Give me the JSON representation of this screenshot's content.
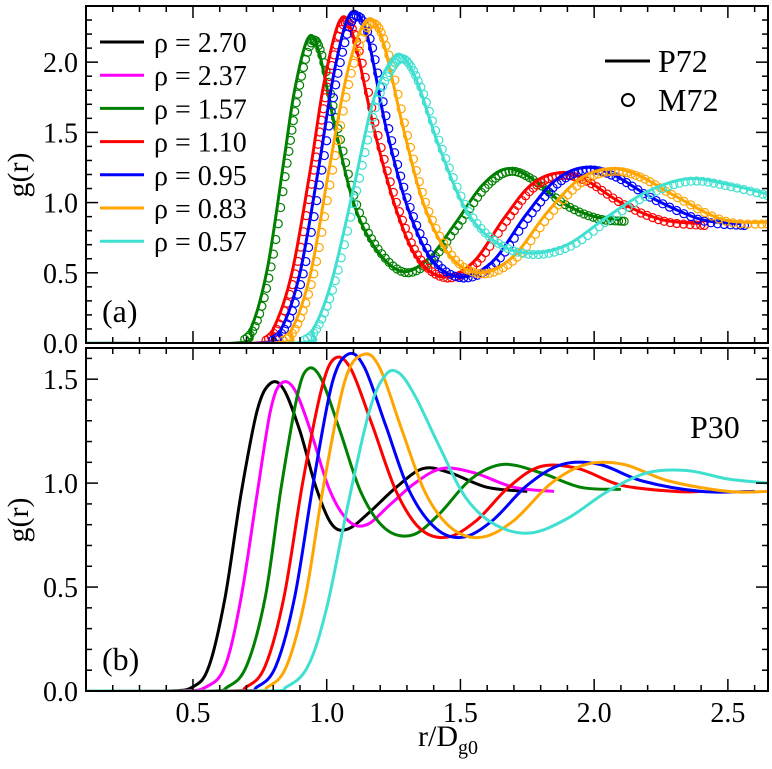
{
  "chart_data": [
    {
      "type": "line",
      "panel_label": "(a)",
      "ylabel": "g(r)",
      "xlabel": "",
      "xlim": [
        0.1,
        2.65
      ],
      "ylim": [
        0,
        2.4
      ],
      "xticks": [
        0.5,
        1.0,
        1.5,
        2.0,
        2.5
      ],
      "yticks": [
        0.0,
        0.5,
        1.0,
        1.5,
        2.0
      ],
      "ytick_labels": [
        "0.0",
        "0.5",
        "1.0",
        "1.5",
        "2.0"
      ],
      "legend": {
        "rho_prefix": "ρ = ",
        "style_entries": [
          {
            "label": "P72",
            "style": "line"
          },
          {
            "label": "M72",
            "style": "markers"
          }
        ]
      },
      "series": [
        {
          "name": "ρ = 2.70",
          "rho": "2.70",
          "color": "#000000",
          "shown": false
        },
        {
          "name": "ρ = 2.37",
          "rho": "2.37",
          "color": "#ff00ff",
          "shown": false
        },
        {
          "name": "ρ = 1.57",
          "rho": "1.57",
          "color": "#008000",
          "shown": true,
          "x0": 0.66,
          "points": [
            [
              0.66,
              0
            ],
            [
              0.72,
              0.12
            ],
            [
              0.78,
              0.55
            ],
            [
              0.84,
              1.3
            ],
            [
              0.88,
              1.8
            ],
            [
              0.93,
              2.17
            ],
            [
              0.97,
              2.08
            ],
            [
              1.03,
              1.55
            ],
            [
              1.1,
              1.0
            ],
            [
              1.18,
              0.68
            ],
            [
              1.28,
              0.51
            ],
            [
              1.38,
              0.6
            ],
            [
              1.48,
              0.85
            ],
            [
              1.58,
              1.12
            ],
            [
              1.67,
              1.24
            ],
            [
              1.76,
              1.18
            ],
            [
              1.88,
              1.0
            ],
            [
              2.0,
              0.9
            ],
            [
              2.1,
              0.88
            ]
          ]
        },
        {
          "name": "ρ = 1.10",
          "rho": "1.10",
          "color": "#ff0000",
          "shown": true,
          "x0": 0.74,
          "points": [
            [
              0.74,
              0
            ],
            [
              0.8,
              0.1
            ],
            [
              0.87,
              0.5
            ],
            [
              0.94,
              1.25
            ],
            [
              0.99,
              1.85
            ],
            [
              1.05,
              2.3
            ],
            [
              1.1,
              2.18
            ],
            [
              1.18,
              1.5
            ],
            [
              1.26,
              0.95
            ],
            [
              1.34,
              0.6
            ],
            [
              1.44,
              0.47
            ],
            [
              1.55,
              0.58
            ],
            [
              1.66,
              0.88
            ],
            [
              1.76,
              1.12
            ],
            [
              1.86,
              1.21
            ],
            [
              1.96,
              1.17
            ],
            [
              2.1,
              1.0
            ],
            [
              2.25,
              0.88
            ],
            [
              2.4,
              0.85
            ]
          ]
        },
        {
          "name": "ρ = 0.95",
          "rho": "0.95",
          "color": "#0000ff",
          "shown": true,
          "x0": 0.76,
          "points": [
            [
              0.76,
              0
            ],
            [
              0.83,
              0.1
            ],
            [
              0.9,
              0.5
            ],
            [
              0.97,
              1.25
            ],
            [
              1.03,
              1.95
            ],
            [
              1.09,
              2.35
            ],
            [
              1.15,
              2.2
            ],
            [
              1.22,
              1.55
            ],
            [
              1.3,
              0.98
            ],
            [
              1.39,
              0.6
            ],
            [
              1.5,
              0.47
            ],
            [
              1.62,
              0.58
            ],
            [
              1.74,
              0.9
            ],
            [
              1.85,
              1.15
            ],
            [
              1.96,
              1.25
            ],
            [
              2.07,
              1.2
            ],
            [
              2.22,
              1.03
            ],
            [
              2.4,
              0.88
            ],
            [
              2.55,
              0.85
            ]
          ]
        },
        {
          "name": "ρ = 0.83",
          "rho": "0.83",
          "color": "#ffa500",
          "shown": true,
          "x0": 0.8,
          "points": [
            [
              0.8,
              0
            ],
            [
              0.87,
              0.1
            ],
            [
              0.94,
              0.5
            ],
            [
              1.01,
              1.25
            ],
            [
              1.08,
              1.95
            ],
            [
              1.15,
              2.3
            ],
            [
              1.21,
              2.15
            ],
            [
              1.29,
              1.5
            ],
            [
              1.37,
              0.95
            ],
            [
              1.47,
              0.6
            ],
            [
              1.58,
              0.5
            ],
            [
              1.7,
              0.62
            ],
            [
              1.82,
              0.92
            ],
            [
              1.94,
              1.16
            ],
            [
              2.05,
              1.24
            ],
            [
              2.16,
              1.2
            ],
            [
              2.3,
              1.05
            ],
            [
              2.48,
              0.88
            ],
            [
              2.65,
              0.86
            ]
          ]
        },
        {
          "name": "ρ = 0.57",
          "rho": "0.57",
          "color": "#40e0d0",
          "shown": true,
          "x0": 0.88,
          "points": [
            [
              0.88,
              0
            ],
            [
              0.95,
              0.1
            ],
            [
              1.02,
              0.45
            ],
            [
              1.1,
              1.1
            ],
            [
              1.17,
              1.7
            ],
            [
              1.23,
              1.98
            ],
            [
              1.28,
              2.05
            ],
            [
              1.34,
              1.85
            ],
            [
              1.42,
              1.4
            ],
            [
              1.52,
              0.95
            ],
            [
              1.63,
              0.72
            ],
            [
              1.76,
              0.64
            ],
            [
              1.9,
              0.7
            ],
            [
              2.05,
              0.9
            ],
            [
              2.2,
              1.08
            ],
            [
              2.35,
              1.17
            ],
            [
              2.5,
              1.13
            ],
            [
              2.65,
              1.06
            ]
          ]
        }
      ]
    },
    {
      "type": "line",
      "panel_label": "(b)",
      "annotation": "P30",
      "ylabel": "g(r)",
      "xlabel": "r/D",
      "xlabel_sub": "g0",
      "xlim": [
        0.1,
        2.65
      ],
      "ylim": [
        0,
        1.65
      ],
      "xticks": [
        0.5,
        1.0,
        1.5,
        2.0,
        2.5
      ],
      "xtick_labels": [
        "0.5",
        "1.0",
        "1.5",
        "2.0",
        "2.5"
      ],
      "yticks": [
        0.0,
        0.5,
        1.0,
        1.5
      ],
      "ytick_labels": [
        "0.0",
        "0.5",
        "1.0",
        "1.5"
      ],
      "series": [
        {
          "name": "ρ = 2.70",
          "color": "#000000",
          "points": [
            [
              0.1,
              0
            ],
            [
              0.4,
              0
            ],
            [
              0.5,
              0.02
            ],
            [
              0.56,
              0.12
            ],
            [
              0.62,
              0.45
            ],
            [
              0.68,
              0.95
            ],
            [
              0.74,
              1.35
            ],
            [
              0.79,
              1.48
            ],
            [
              0.84,
              1.45
            ],
            [
              0.9,
              1.25
            ],
            [
              0.96,
              0.98
            ],
            [
              1.02,
              0.8
            ],
            [
              1.08,
              0.78
            ],
            [
              1.16,
              0.86
            ],
            [
              1.26,
              0.98
            ],
            [
              1.36,
              1.07
            ],
            [
              1.46,
              1.05
            ],
            [
              1.6,
              0.98
            ],
            [
              1.75,
              0.96
            ]
          ]
        },
        {
          "name": "ρ = 2.37",
          "color": "#ff00ff",
          "points": [
            [
              0.1,
              0
            ],
            [
              0.45,
              0
            ],
            [
              0.55,
              0.02
            ],
            [
              0.62,
              0.12
            ],
            [
              0.68,
              0.45
            ],
            [
              0.74,
              0.95
            ],
            [
              0.79,
              1.35
            ],
            [
              0.83,
              1.48
            ],
            [
              0.88,
              1.45
            ],
            [
              0.94,
              1.25
            ],
            [
              1.01,
              0.97
            ],
            [
              1.08,
              0.82
            ],
            [
              1.15,
              0.8
            ],
            [
              1.24,
              0.9
            ],
            [
              1.33,
              1.0
            ],
            [
              1.43,
              1.07
            ],
            [
              1.55,
              1.05
            ],
            [
              1.7,
              0.98
            ],
            [
              1.85,
              0.96
            ]
          ]
        },
        {
          "name": "ρ = 1.57",
          "color": "#008000",
          "points": [
            [
              0.1,
              0
            ],
            [
              0.55,
              0
            ],
            [
              0.63,
              0.02
            ],
            [
              0.7,
              0.12
            ],
            [
              0.77,
              0.45
            ],
            [
              0.83,
              0.98
            ],
            [
              0.89,
              1.42
            ],
            [
              0.93,
              1.55
            ],
            [
              0.98,
              1.5
            ],
            [
              1.05,
              1.25
            ],
            [
              1.13,
              0.95
            ],
            [
              1.22,
              0.78
            ],
            [
              1.32,
              0.75
            ],
            [
              1.42,
              0.85
            ],
            [
              1.54,
              1.02
            ],
            [
              1.66,
              1.09
            ],
            [
              1.8,
              1.05
            ],
            [
              1.95,
              0.98
            ],
            [
              2.1,
              0.97
            ]
          ]
        },
        {
          "name": "ρ = 1.10",
          "color": "#ff0000",
          "points": [
            [
              0.1,
              0
            ],
            [
              0.62,
              0
            ],
            [
              0.7,
              0.02
            ],
            [
              0.77,
              0.12
            ],
            [
              0.84,
              0.45
            ],
            [
              0.91,
              1.0
            ],
            [
              0.98,
              1.45
            ],
            [
              1.03,
              1.6
            ],
            [
              1.09,
              1.55
            ],
            [
              1.17,
              1.28
            ],
            [
              1.26,
              0.96
            ],
            [
              1.35,
              0.78
            ],
            [
              1.45,
              0.74
            ],
            [
              1.56,
              0.82
            ],
            [
              1.68,
              0.98
            ],
            [
              1.8,
              1.08
            ],
            [
              1.94,
              1.07
            ],
            [
              2.1,
              0.99
            ],
            [
              2.3,
              0.96
            ],
            [
              2.4,
              0.96
            ]
          ]
        },
        {
          "name": "ρ = 0.95",
          "color": "#0000ff",
          "points": [
            [
              0.1,
              0
            ],
            [
              0.66,
              0
            ],
            [
              0.74,
              0.02
            ],
            [
              0.81,
              0.12
            ],
            [
              0.88,
              0.45
            ],
            [
              0.95,
              1.0
            ],
            [
              1.02,
              1.48
            ],
            [
              1.08,
              1.62
            ],
            [
              1.14,
              1.56
            ],
            [
              1.22,
              1.28
            ],
            [
              1.31,
              0.96
            ],
            [
              1.41,
              0.78
            ],
            [
              1.51,
              0.74
            ],
            [
              1.62,
              0.82
            ],
            [
              1.75,
              0.99
            ],
            [
              1.88,
              1.09
            ],
            [
              2.02,
              1.09
            ],
            [
              2.18,
              1.01
            ],
            [
              2.4,
              0.96
            ],
            [
              2.6,
              0.96
            ]
          ]
        },
        {
          "name": "ρ = 0.83",
          "color": "#ffa500",
          "points": [
            [
              0.1,
              0
            ],
            [
              0.7,
              0
            ],
            [
              0.78,
              0.02
            ],
            [
              0.85,
              0.12
            ],
            [
              0.92,
              0.45
            ],
            [
              0.99,
              1.0
            ],
            [
              1.07,
              1.5
            ],
            [
              1.14,
              1.62
            ],
            [
              1.2,
              1.55
            ],
            [
              1.28,
              1.26
            ],
            [
              1.37,
              0.95
            ],
            [
              1.47,
              0.78
            ],
            [
              1.58,
              0.74
            ],
            [
              1.7,
              0.82
            ],
            [
              1.84,
              1.0
            ],
            [
              1.97,
              1.09
            ],
            [
              2.11,
              1.09
            ],
            [
              2.28,
              1.01
            ],
            [
              2.5,
              0.96
            ],
            [
              2.65,
              0.96
            ]
          ]
        },
        {
          "name": "ρ = 0.57",
          "color": "#40e0d0",
          "points": [
            [
              0.1,
              0
            ],
            [
              0.76,
              0
            ],
            [
              0.85,
              0.02
            ],
            [
              0.93,
              0.12
            ],
            [
              1.0,
              0.4
            ],
            [
              1.08,
              0.9
            ],
            [
              1.16,
              1.35
            ],
            [
              1.22,
              1.52
            ],
            [
              1.27,
              1.53
            ],
            [
              1.33,
              1.42
            ],
            [
              1.42,
              1.18
            ],
            [
              1.52,
              0.93
            ],
            [
              1.63,
              0.8
            ],
            [
              1.76,
              0.76
            ],
            [
              1.9,
              0.83
            ],
            [
              2.05,
              0.96
            ],
            [
              2.2,
              1.05
            ],
            [
              2.35,
              1.06
            ],
            [
              2.5,
              1.02
            ],
            [
              2.65,
              1.0
            ]
          ]
        }
      ]
    }
  ]
}
